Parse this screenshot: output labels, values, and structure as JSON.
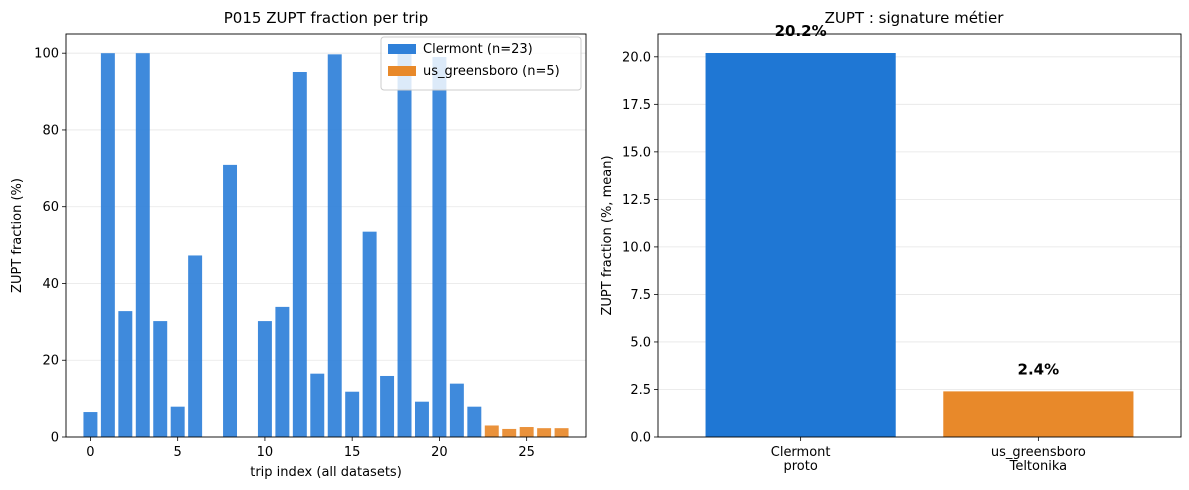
{
  "chart_data": [
    {
      "type": "bar",
      "title": "P015 ZUPT fraction per trip",
      "xlabel": "trip index (all datasets)",
      "ylabel": "ZUPT fraction (%)",
      "xlim": [
        -1.4,
        28.4
      ],
      "ylim": [
        0,
        105
      ],
      "xticks": [
        0,
        5,
        10,
        15,
        20,
        25
      ],
      "yticks": [
        0,
        20,
        40,
        60,
        80,
        100
      ],
      "grid": "y",
      "legend_position": "top-right",
      "series": [
        {
          "name": "Clermont (n=23)",
          "color": "#2f80d9",
          "x": [
            0,
            1,
            2,
            3,
            4,
            5,
            6,
            7,
            8,
            9,
            10,
            11,
            12,
            13,
            14,
            15,
            16,
            17,
            18,
            19,
            20,
            21,
            22
          ],
          "values": [
            6.5,
            100,
            32.8,
            100,
            30.2,
            7.9,
            47.3,
            0,
            70.9,
            0,
            30.2,
            33.9,
            95.1,
            16.5,
            99.7,
            11.8,
            53.5,
            15.9,
            100,
            9.2,
            99,
            13.9,
            7.9
          ]
        },
        {
          "name": "us_greensboro (n=5)",
          "color": "#e8892a",
          "x": [
            23,
            24,
            25,
            26,
            27
          ],
          "values": [
            3.0,
            2.1,
            2.6,
            2.3,
            2.3
          ]
        }
      ]
    },
    {
      "type": "bar",
      "title": "ZUPT : signature métier",
      "xlabel": "",
      "ylabel": "ZUPT fraction (%, mean)",
      "ylim": [
        0,
        21.2
      ],
      "yticks": [
        0.0,
        2.5,
        5.0,
        7.5,
        10.0,
        12.5,
        15.0,
        17.5,
        20.0
      ],
      "ytick_labels": [
        "0.0",
        "2.5",
        "5.0",
        "7.5",
        "10.0",
        "12.5",
        "15.0",
        "17.5",
        "20.0"
      ],
      "grid": "y",
      "categories": [
        [
          "Clermont",
          "proto"
        ],
        [
          "us_greensboro",
          "Teltonika"
        ]
      ],
      "values": [
        20.2,
        2.4
      ],
      "data_labels": [
        "20.2%",
        "2.4%"
      ],
      "colors": [
        "#1f77d4",
        "#e8892a"
      ]
    }
  ]
}
